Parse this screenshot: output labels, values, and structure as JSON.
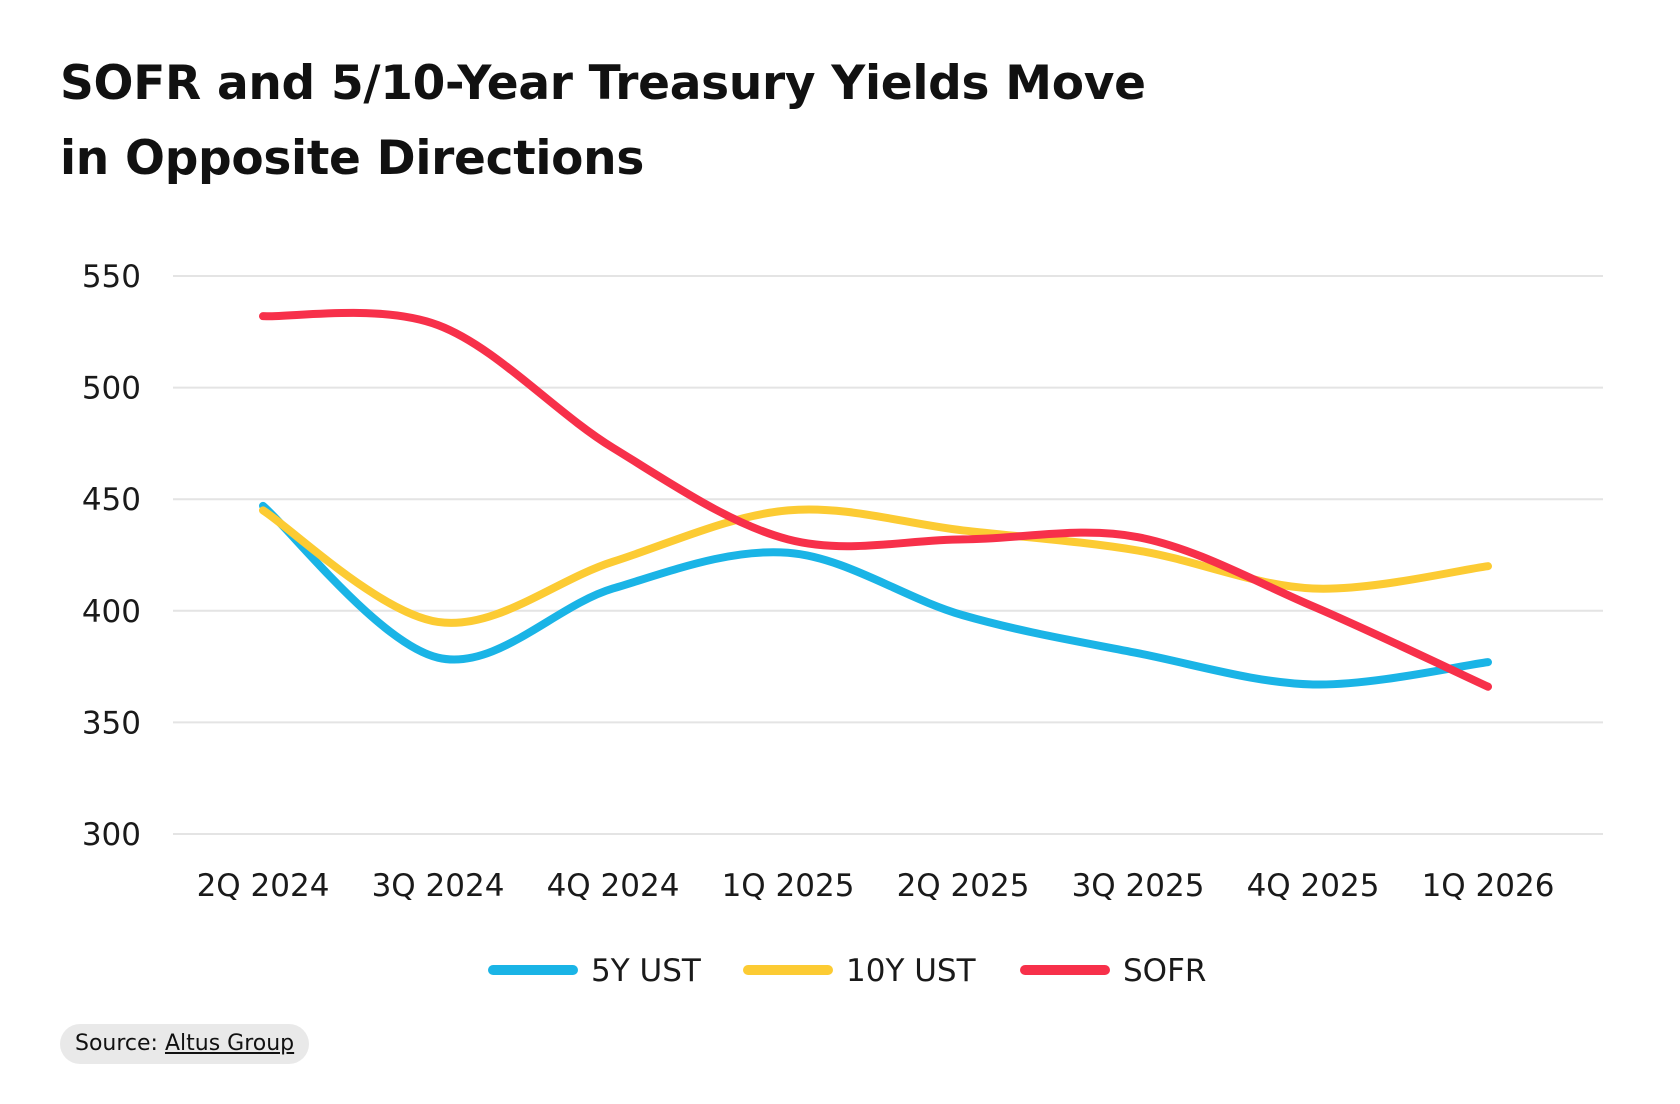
{
  "title_line1": "SOFR and 5/10-Year Treasury Yields Move",
  "title_line2": "in Opposite Directions",
  "source": {
    "prefix": "Source:",
    "link": "Altus Group"
  },
  "chart_data": {
    "type": "line",
    "title": "SOFR and 5/10-Year Treasury Yields Move in Opposite Directions",
    "xlabel": "",
    "ylabel": "",
    "categories": [
      "2Q 2024",
      "3Q 2024",
      "4Q 2024",
      "1Q 2025",
      "2Q 2025",
      "3Q 2025",
      "4Q 2025",
      "1Q 2026"
    ],
    "yticks": [
      300,
      350,
      400,
      450,
      500,
      550
    ],
    "ylim": [
      300,
      550
    ],
    "grid": true,
    "legend": "bottom-center",
    "series": [
      {
        "name": "5Y UST",
        "color": "#1ab4e6",
        "values": [
          447,
          379,
          410,
          426,
          398,
          381,
          367,
          377
        ]
      },
      {
        "name": "10Y UST",
        "color": "#fccb33",
        "values": [
          445,
          395,
          422,
          445,
          436,
          427,
          410,
          420
        ]
      },
      {
        "name": "SOFR",
        "color": "#f7304a",
        "values": [
          532,
          528,
          473,
          432,
          432,
          433,
          402,
          366
        ]
      }
    ]
  }
}
